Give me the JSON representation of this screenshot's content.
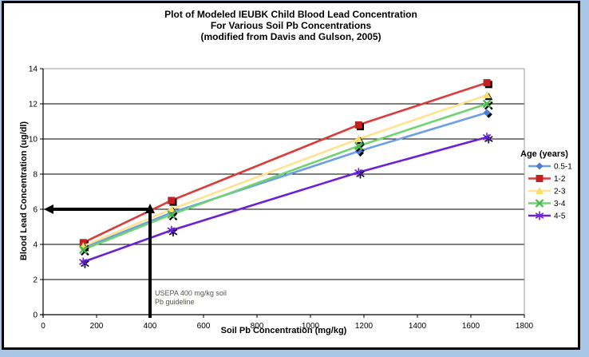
{
  "chart_data": {
    "type": "line",
    "title_lines": [
      "Plot of Modeled  IEUBK Child Blood Lead Concentration",
      "For Various Soil Pb Concentrations",
      "(modified from Davis and Gulson, 2005)"
    ],
    "xlabel": "Soil Pb Concentration (mg/kg)",
    "ylabel": "Blood Lead Concentration (ug/dl)",
    "legend_title": "Age (years)",
    "legend_position": "right",
    "grid": true,
    "xlim": [
      0,
      1800
    ],
    "ylim": [
      0,
      14
    ],
    "x_ticks": [
      0,
      200,
      400,
      600,
      800,
      1000,
      1200,
      1400,
      1600,
      1800
    ],
    "y_ticks": [
      0,
      2,
      4,
      6,
      8,
      10,
      12,
      14
    ],
    "x": [
      150,
      480,
      1180,
      1660
    ],
    "series": [
      {
        "name": "0.5-1",
        "marker": "diamond",
        "line_color": "#6D9EEA",
        "marker_color": "#4E7CD6",
        "values": [
          3.8,
          5.8,
          9.3,
          11.5
        ]
      },
      {
        "name": "1-2",
        "marker": "square",
        "line_color": "#DC3B3B",
        "marker_color": "#C22121",
        "values": [
          4.1,
          6.5,
          10.8,
          13.2
        ]
      },
      {
        "name": "2-3",
        "marker": "triangle",
        "line_color": "#FFE38E",
        "marker_color": "#F7DE69",
        "values": [
          3.9,
          6.0,
          10.0,
          12.5
        ]
      },
      {
        "name": "3-4",
        "marker": "x",
        "line_color": "#6FD36F",
        "marker_color": "#45B945",
        "values": [
          3.7,
          5.7,
          9.6,
          12.0
        ]
      },
      {
        "name": "4-5",
        "marker": "asterisk",
        "line_color": "#6C20DC",
        "marker_color": "#6C20DC",
        "values": [
          3.0,
          4.8,
          8.1,
          10.1
        ]
      }
    ],
    "annotation": {
      "text_lines": [
        "USEPA  400 mg/kg soil",
        "Pb guideline"
      ],
      "arrow_x": 400,
      "arrow_y": 6
    },
    "colors": {
      "outer_bg": "#a9c6e6",
      "frame": "#000000",
      "grid": "#000000",
      "plot_border": "#9a9a9a",
      "annotation_text": "#5a554b",
      "arrow": "#000000"
    }
  }
}
